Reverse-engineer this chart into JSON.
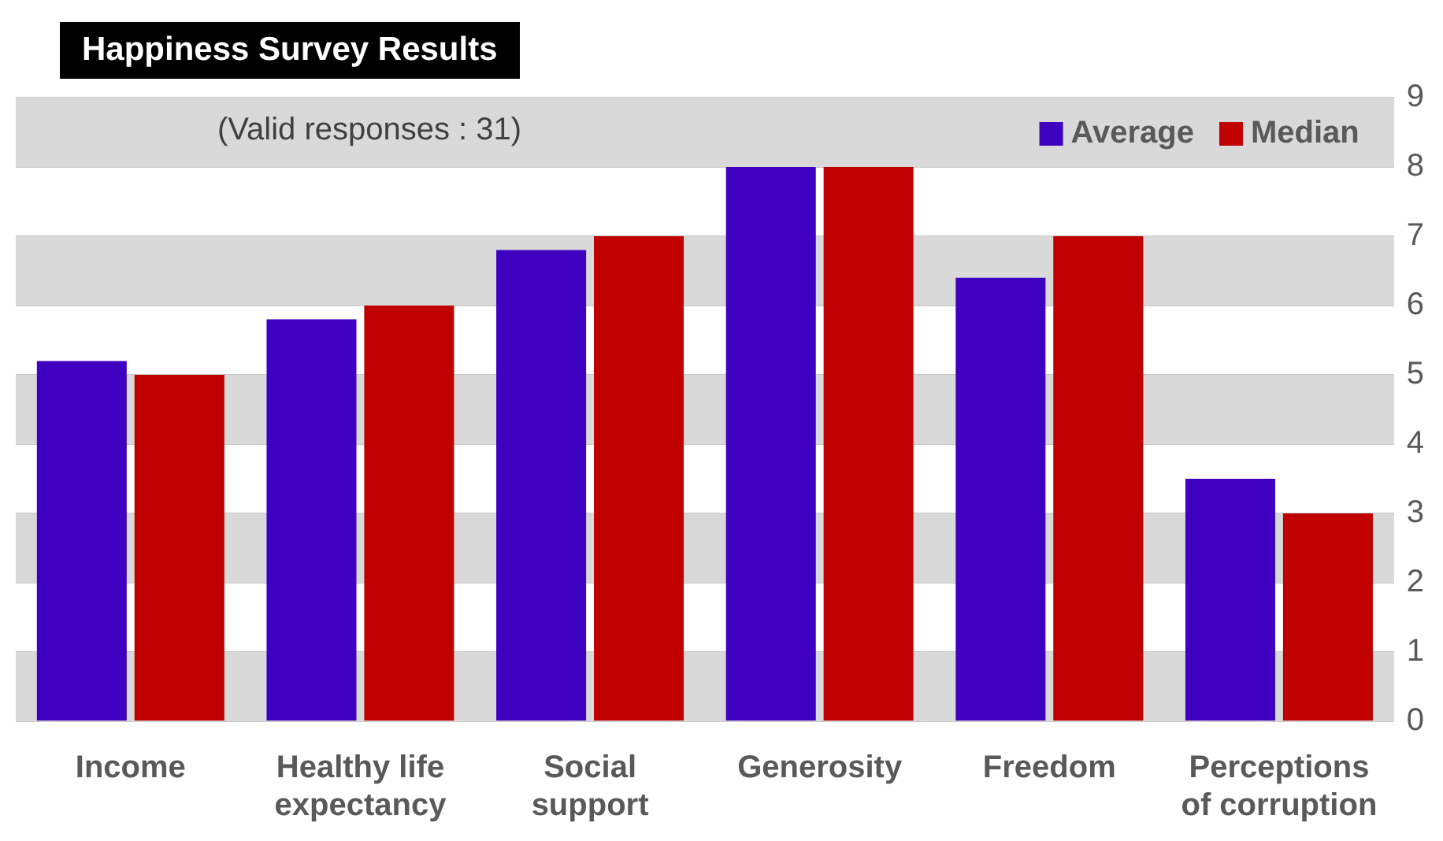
{
  "chart_data": {
    "type": "bar",
    "title": "Happiness Survey Results",
    "annotations": [
      "(Valid responses : 31)"
    ],
    "categories": [
      "Income",
      "Healthy life expectancy",
      "Social support",
      "Generosity",
      "Freedom",
      "Perceptions of corruption"
    ],
    "series": [
      {
        "name": "Average",
        "color": "#4000bf",
        "values": [
          5.2,
          5.8,
          6.8,
          8.0,
          6.4,
          3.5
        ]
      },
      {
        "name": "Median",
        "color": "#c00000",
        "values": [
          5.0,
          6.0,
          7.0,
          8.0,
          7.0,
          3.0
        ]
      }
    ],
    "ylim": [
      0,
      9
    ],
    "yticks": [
      0,
      1,
      2,
      3,
      4,
      5,
      6,
      7,
      8,
      9
    ],
    "grid": "y",
    "legend": "top right"
  }
}
